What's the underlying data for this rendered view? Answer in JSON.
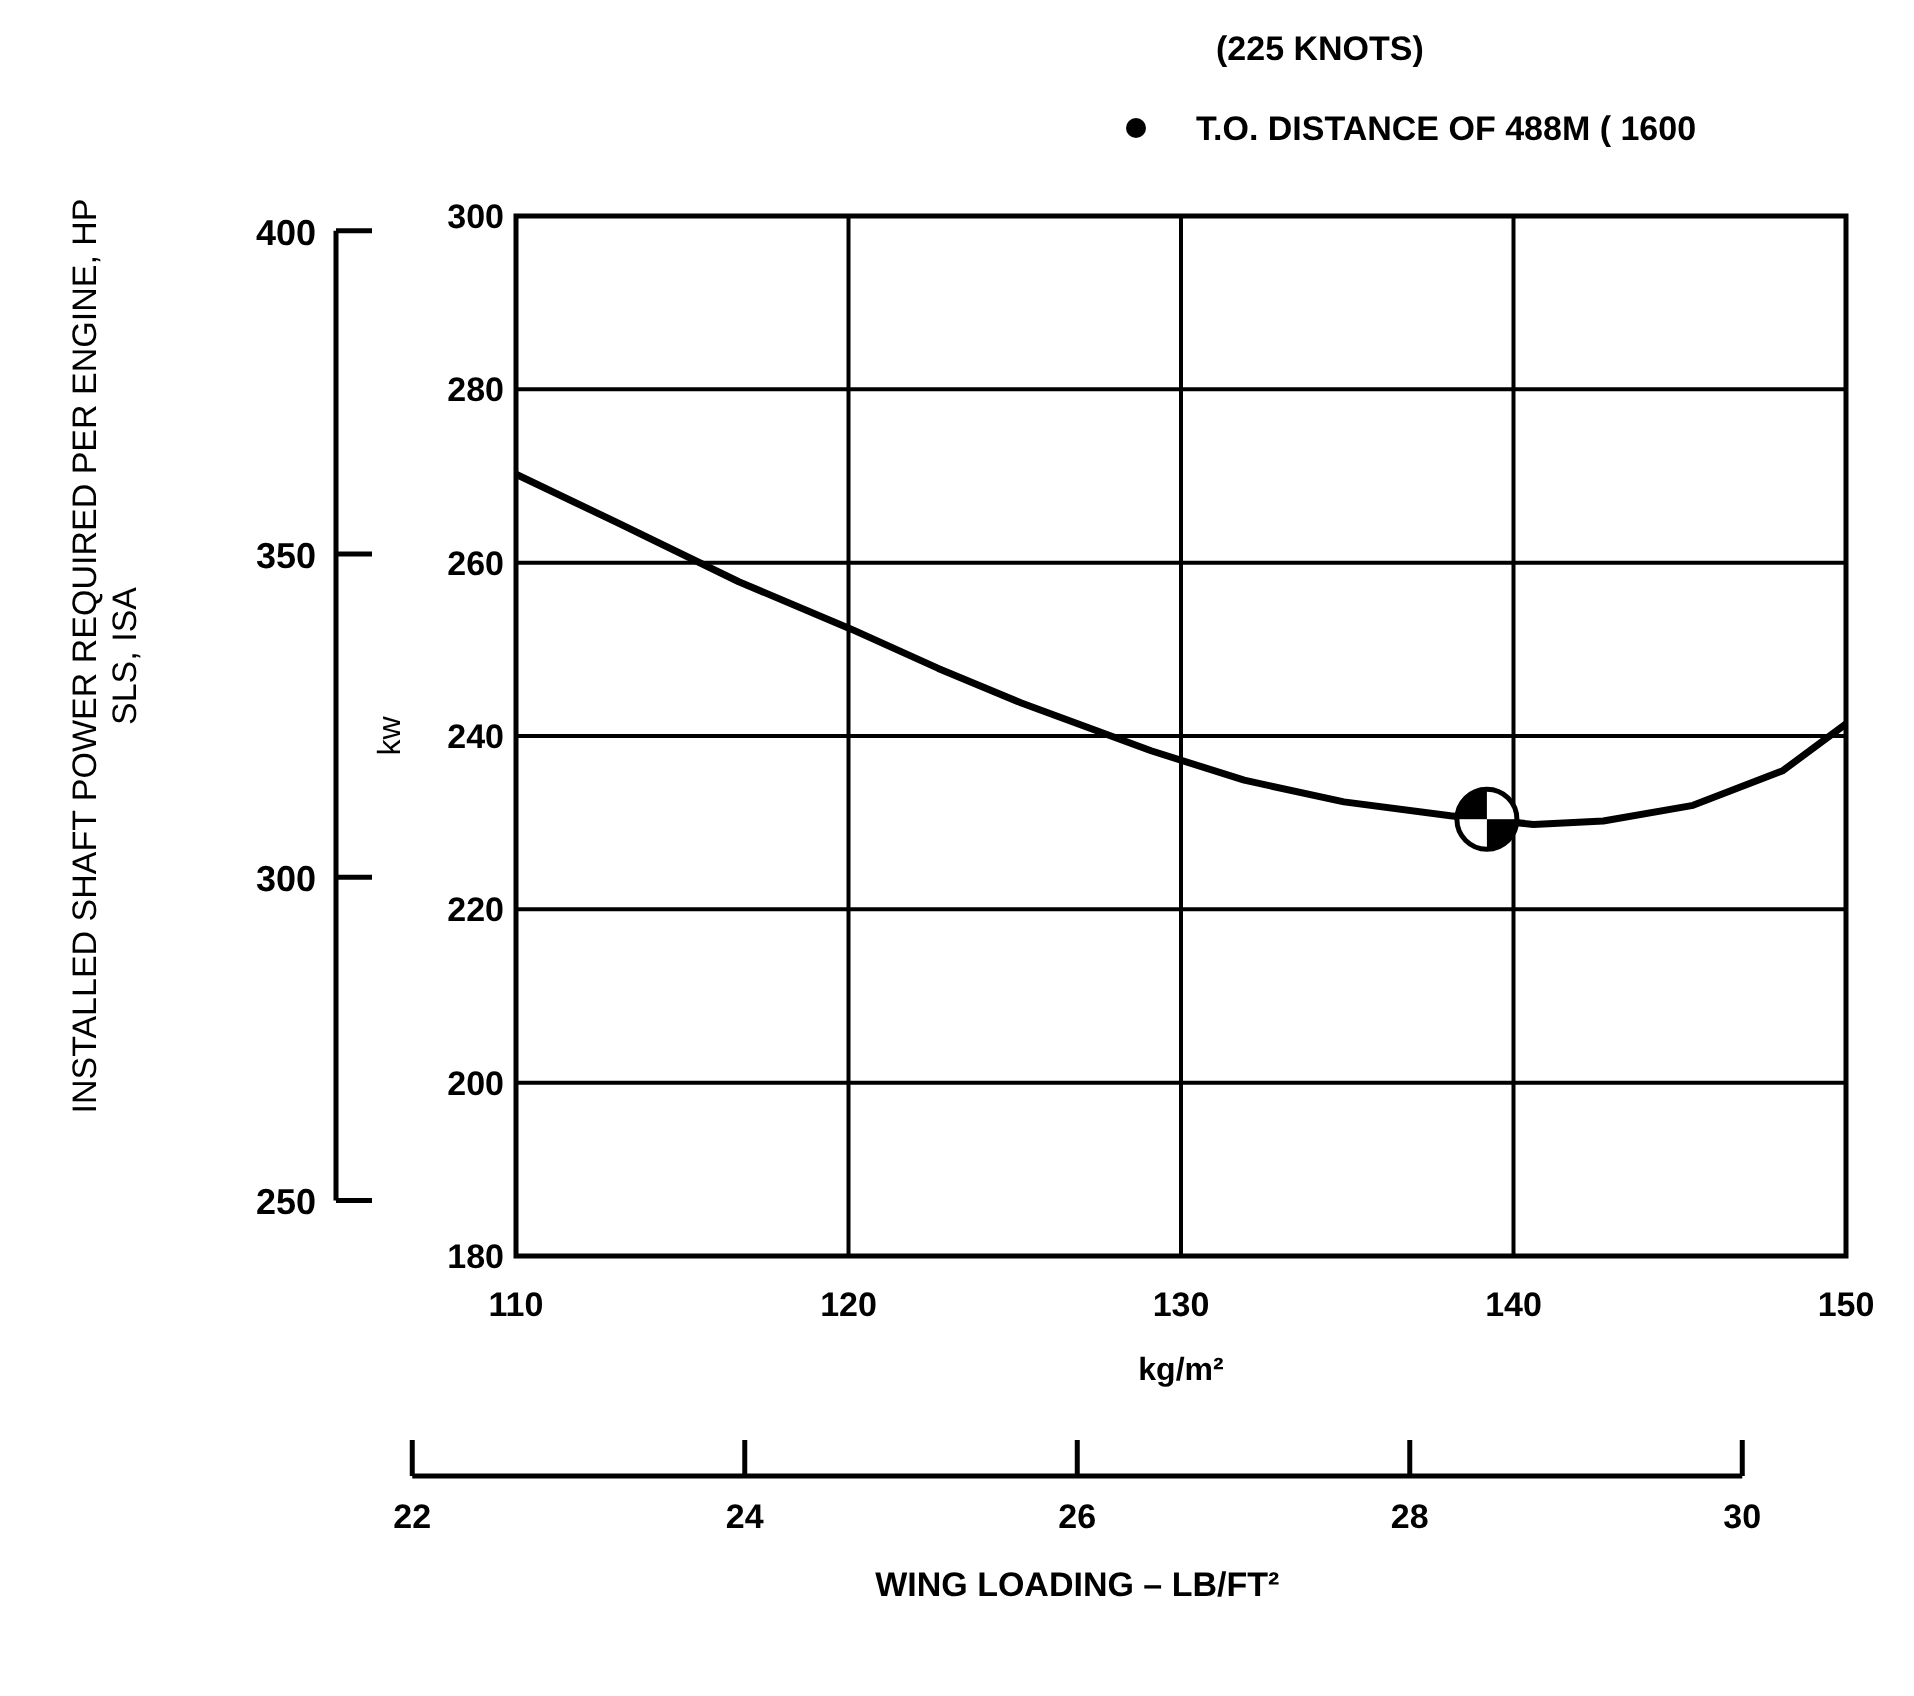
{
  "chart_data": {
    "type": "line",
    "xlabel": "kg/m²",
    "ylabel": "kw",
    "y2label": "INSTALLED SHAFT POWER REQUIRED PER ENGINE, HP\nSLS, ISA",
    "x2label": "WING LOADING – LB/FT²",
    "annotations": [
      "(225 KNOTS)"
    ],
    "xlim": [
      110,
      150
    ],
    "xticks": [
      110,
      120,
      130,
      140,
      150
    ],
    "ylim": [
      180,
      300
    ],
    "yticks": [
      180,
      200,
      220,
      240,
      260,
      280,
      300
    ],
    "y2lim": [
      241.4,
      402.3
    ],
    "y2ticks": [
      250,
      300,
      350,
      400
    ],
    "x2lim": [
      22,
      30
    ],
    "x2ticks": [
      22,
      24,
      26,
      28,
      30
    ],
    "grid": true,
    "legend": "top",
    "series": [
      {
        "color": "#000000",
        "x": [
          110,
          113,
          116.7,
          120.1,
          122.7,
          125.2,
          129.1,
          131.9,
          134.9,
          138.1,
          140.6,
          142.7,
          145.4,
          148.1,
          150
        ],
        "values": [
          270.2,
          264.7,
          257.8,
          252.3,
          247.8,
          243.8,
          238.3,
          234.9,
          232.4,
          230.8,
          229.8,
          230.2,
          232.0,
          236.0,
          241.4
        ]
      },
      {
        "type": "scatter",
        "name": "T.O. DISTANCE OF 488M ( 1600",
        "color": "#000000",
        "marker": "circle",
        "x": [
          139.2
        ],
        "values": [
          230.4
        ]
      }
    ]
  }
}
